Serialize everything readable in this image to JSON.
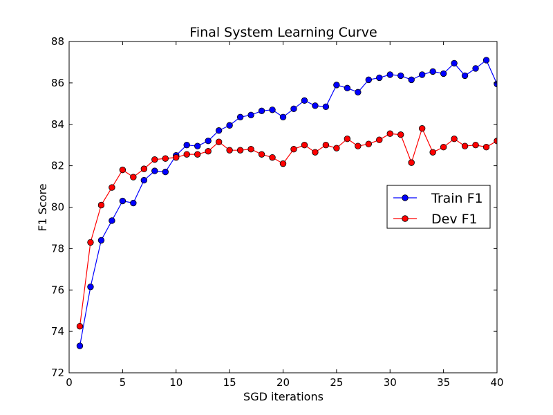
{
  "chart_data": {
    "type": "line",
    "title": "Final System Learning Curve",
    "xlabel": "SGD iterations",
    "ylabel": "F1 Score",
    "xlim": [
      0,
      40
    ],
    "ylim": [
      72,
      88
    ],
    "xticks": [
      0,
      5,
      10,
      15,
      20,
      25,
      30,
      35,
      40
    ],
    "yticks": [
      72,
      74,
      76,
      78,
      80,
      82,
      84,
      86,
      88
    ],
    "grid": false,
    "legend_position": "center-right",
    "x": [
      1,
      2,
      3,
      4,
      5,
      6,
      7,
      8,
      9,
      10,
      11,
      12,
      13,
      14,
      15,
      16,
      17,
      18,
      19,
      20,
      21,
      22,
      23,
      24,
      25,
      26,
      27,
      28,
      29,
      30,
      31,
      32,
      33,
      34,
      35,
      36,
      37,
      38,
      39,
      40
    ],
    "series": [
      {
        "name": "Train F1",
        "color": "#0000ff",
        "values": [
          73.3,
          76.15,
          78.4,
          79.35,
          80.3,
          80.2,
          81.3,
          81.75,
          81.7,
          82.5,
          83.0,
          82.95,
          83.2,
          83.7,
          83.95,
          84.35,
          84.45,
          84.65,
          84.7,
          84.35,
          84.75,
          85.15,
          84.9,
          84.85,
          85.9,
          85.75,
          85.55,
          86.15,
          86.25,
          86.4,
          86.35,
          86.15,
          86.4,
          86.55,
          86.45,
          86.95,
          86.35,
          86.7,
          87.1,
          85.95
        ]
      },
      {
        "name": "Dev F1",
        "color": "#ff0000",
        "values": [
          74.25,
          78.3,
          80.1,
          80.95,
          81.8,
          81.45,
          81.85,
          82.3,
          82.35,
          82.4,
          82.55,
          82.55,
          82.7,
          83.15,
          82.75,
          82.75,
          82.8,
          82.55,
          82.4,
          82.1,
          82.8,
          83.0,
          82.65,
          83.0,
          82.85,
          83.3,
          82.95,
          83.05,
          83.25,
          83.55,
          83.5,
          82.15,
          83.8,
          82.65,
          82.9,
          83.3,
          82.95,
          83.0,
          82.9,
          83.2
        ]
      }
    ]
  }
}
